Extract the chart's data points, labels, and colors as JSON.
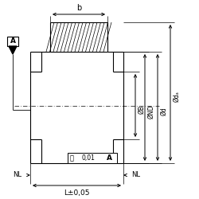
{
  "bg_color": "#ffffff",
  "line_color": "#000000",
  "label_b": "b",
  "label_A": "A",
  "label_NL_left": "NL",
  "label_NL_right": "NL",
  "label_L": "L±0,05",
  "label_ref": "A",
  "label_B": "ØB",
  "label_ND": "ØND",
  "label_d": "Ød",
  "label_da": "Ødₐ",
  "fig_width": 2.5,
  "fig_height": 2.5,
  "dpi": 100
}
